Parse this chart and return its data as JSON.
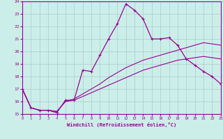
{
  "xlabel": "Windchill (Refroidissement éolien,°C)",
  "bg_color": "#cceee8",
  "line_color": "#990099",
  "grid_color": "#aacccc",
  "x_hours": [
    0,
    1,
    2,
    3,
    4,
    5,
    6,
    7,
    8,
    9,
    10,
    11,
    12,
    13,
    14,
    15,
    16,
    17,
    18,
    19,
    20,
    21,
    22,
    23
  ],
  "windchill": [
    17.0,
    15.5,
    15.3,
    15.3,
    15.1,
    16.1,
    16.1,
    18.5,
    18.4,
    19.7,
    21.0,
    22.2,
    23.8,
    23.3,
    22.6,
    21.0,
    21.0,
    21.1,
    20.5,
    19.4,
    18.9,
    18.4,
    18.0,
    17.4
  ],
  "line2": [
    17.0,
    15.5,
    15.3,
    15.3,
    15.2,
    16.0,
    16.2,
    16.6,
    17.0,
    17.4,
    17.9,
    18.3,
    18.7,
    19.0,
    19.3,
    19.5,
    19.7,
    19.9,
    20.1,
    20.3,
    20.5,
    20.7,
    20.6,
    20.5
  ],
  "line3": [
    17.0,
    15.5,
    15.3,
    15.3,
    15.2,
    16.0,
    16.1,
    16.4,
    16.7,
    17.0,
    17.3,
    17.6,
    17.9,
    18.2,
    18.5,
    18.7,
    18.9,
    19.1,
    19.3,
    19.4,
    19.5,
    19.6,
    19.5,
    19.4
  ],
  "ylim": [
    15,
    24
  ],
  "xlim": [
    0,
    23
  ],
  "yticks": [
    15,
    16,
    17,
    18,
    19,
    20,
    21,
    22,
    23,
    24
  ],
  "xticks": [
    0,
    1,
    2,
    3,
    4,
    5,
    6,
    7,
    8,
    9,
    10,
    11,
    12,
    13,
    14,
    15,
    16,
    17,
    18,
    19,
    20,
    21,
    22,
    23
  ]
}
